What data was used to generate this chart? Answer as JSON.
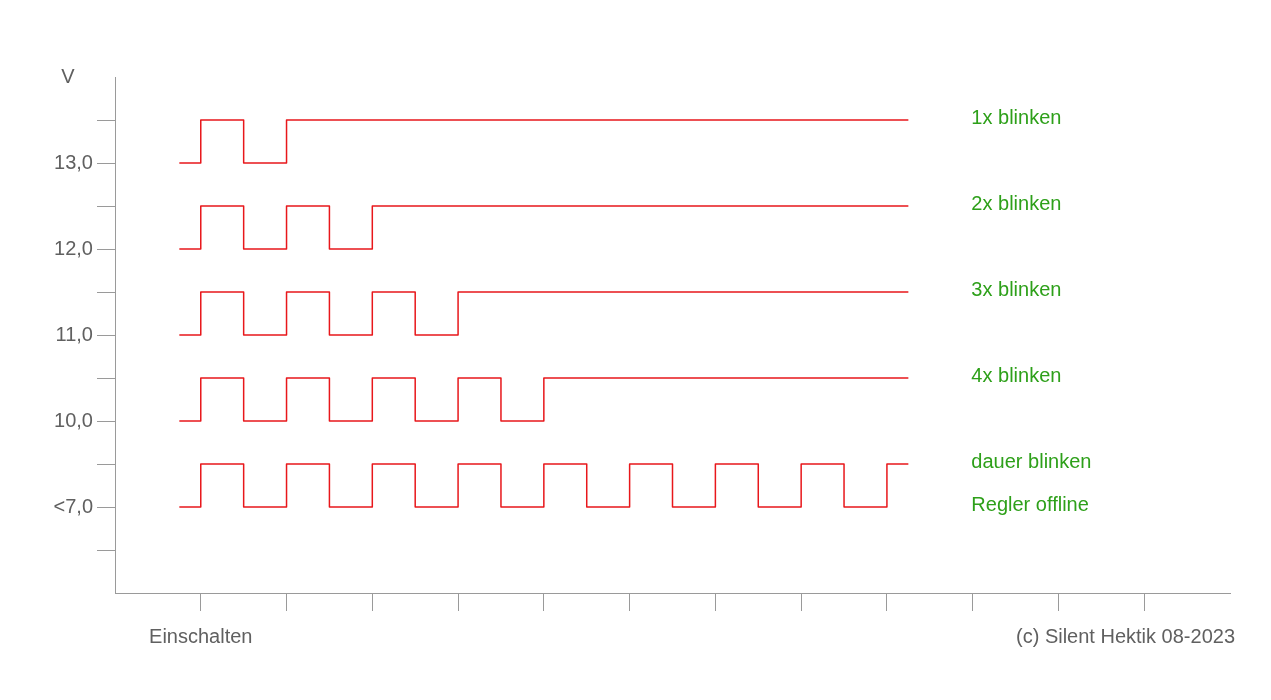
{
  "chart_data": {
    "type": "step",
    "ylabel": "V",
    "ylim": [
      8,
      14
    ],
    "categories": [
      null,
      "Einschalten",
      null,
      null,
      null,
      null,
      null,
      null,
      null,
      null,
      null,
      null,
      null,
      null,
      null,
      null,
      null,
      null,
      null,
      null,
      null,
      null,
      null,
      null,
      null,
      null,
      null,
      null,
      null,
      null,
      null,
      null,
      null,
      null,
      null
    ],
    "yticks": [
      {
        "value": 9,
        "label": "<7,0"
      },
      {
        "value": 10,
        "label": "10,0"
      },
      {
        "value": 11,
        "label": "11,0"
      },
      {
        "value": 12,
        "label": "12,0"
      },
      {
        "value": 13,
        "label": "13,0"
      }
    ],
    "grid": false,
    "legend": false,
    "series": [
      {
        "name": "1x blinken",
        "color": "#e8171b",
        "values": [
          13,
          13.5,
          13.5,
          13,
          13,
          13.5,
          13.5,
          13.5,
          13.5,
          13.5,
          13.5,
          13.5,
          13.5,
          13.5,
          13.5,
          13.5,
          13.5,
          13.5,
          13.5,
          13.5,
          13.5,
          13.5,
          13.5,
          13.5,
          13.5,
          13.5,
          13.5,
          13.5,
          13.5,
          13.5,
          13.5,
          13.5,
          13.5,
          13.5,
          13.5
        ]
      },
      {
        "name": "2x blinken",
        "color": "#e8171b",
        "values": [
          12,
          12.5,
          12.5,
          12,
          12,
          12.5,
          12.5,
          12,
          12,
          12.5,
          12.5,
          12.5,
          12.5,
          12.5,
          12.5,
          12.5,
          12.5,
          12.5,
          12.5,
          12.5,
          12.5,
          12.5,
          12.5,
          12.5,
          12.5,
          12.5,
          12.5,
          12.5,
          12.5,
          12.5,
          12.5,
          12.5,
          12.5,
          12.5,
          12.5
        ]
      },
      {
        "name": "3x blinken",
        "color": "#e8171b",
        "values": [
          11,
          11.5,
          11.5,
          11,
          11,
          11.5,
          11.5,
          11,
          11,
          11.5,
          11.5,
          11,
          11,
          11.5,
          11.5,
          11.5,
          11.5,
          11.5,
          11.5,
          11.5,
          11.5,
          11.5,
          11.5,
          11.5,
          11.5,
          11.5,
          11.5,
          11.5,
          11.5,
          11.5,
          11.5,
          11.5,
          11.5,
          11.5,
          11.5
        ]
      },
      {
        "name": "4x blinken",
        "color": "#e8171b",
        "values": [
          10,
          10.5,
          10.5,
          10,
          10,
          10.5,
          10.5,
          10,
          10,
          10.5,
          10.5,
          10,
          10,
          10.5,
          10.5,
          10,
          10,
          10.5,
          10.5,
          10.5,
          10.5,
          10.5,
          10.5,
          10.5,
          10.5,
          10.5,
          10.5,
          10.5,
          10.5,
          10.5,
          10.5,
          10.5,
          10.5,
          10.5,
          10.5
        ]
      },
      {
        "name": "dauer blinken",
        "color": "#e8171b",
        "values": [
          9,
          9.5,
          9.5,
          9,
          9,
          9.5,
          9.5,
          9,
          9,
          9.5,
          9.5,
          9,
          9,
          9.5,
          9.5,
          9,
          9,
          9.5,
          9.5,
          9,
          9,
          9.5,
          9.5,
          9,
          9,
          9.5,
          9.5,
          9,
          9,
          9.5,
          9.5,
          9,
          9,
          9.5,
          9.5
        ]
      }
    ],
    "annotations": [
      "Regler offline",
      "(c) Silent Hektik 08-2023"
    ]
  }
}
